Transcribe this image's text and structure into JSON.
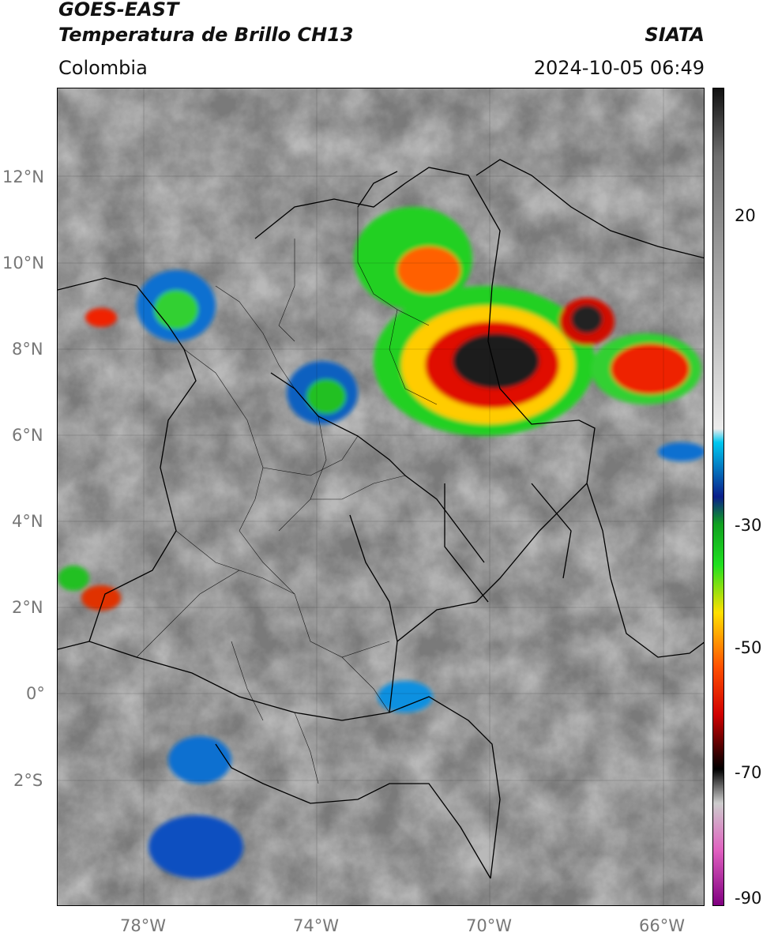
{
  "header": {
    "title_line1": "GOES-EAST",
    "title_line2": "Temperatura de Brillo CH13",
    "region": "Colombia",
    "source": "SIATA",
    "datetime": "2024-10-05 06:49"
  },
  "axes": {
    "lat_labels": [
      "12°N",
      "10°N",
      "8°N",
      "6°N",
      "4°N",
      "2°N",
      "0°",
      "2°S"
    ],
    "lon_labels": [
      "78°W",
      "74°W",
      "70°W",
      "66°W"
    ]
  },
  "colorbar": {
    "tick_labels": [
      "20",
      "-30",
      "-50",
      "-70",
      "-90"
    ],
    "stops": [
      {
        "value": 30,
        "color": "#111111"
      },
      {
        "value": 20,
        "color": "#6e6e6e"
      },
      {
        "value": -20,
        "color": "#ececec"
      },
      {
        "value": -22,
        "color": "#00c8f0"
      },
      {
        "value": -30,
        "color": "#0a1e8a"
      },
      {
        "value": -34,
        "color": "#10a020"
      },
      {
        "value": -40,
        "color": "#20e020"
      },
      {
        "value": -47,
        "color": "#ffe000"
      },
      {
        "value": -55,
        "color": "#ff5000"
      },
      {
        "value": -62,
        "color": "#d00000"
      },
      {
        "value": -68,
        "color": "#300000"
      },
      {
        "value": -70,
        "color": "#000000"
      },
      {
        "value": -75,
        "color": "#cccccc"
      },
      {
        "value": -82,
        "color": "#e060c0"
      },
      {
        "value": -90,
        "color": "#800080"
      }
    ]
  }
}
